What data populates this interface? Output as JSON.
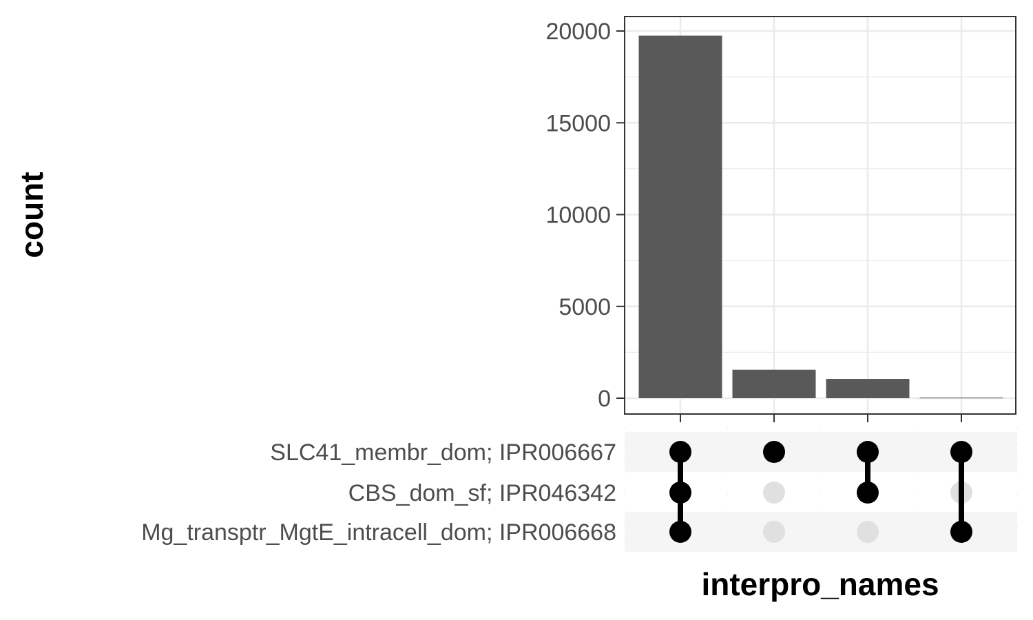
{
  "chart_data": {
    "type": "bar",
    "subtype": "upset",
    "xlabel": "interpro_names",
    "ylabel": "count",
    "ylim": [
      0,
      20800
    ],
    "yticks": [
      0,
      5000,
      10000,
      15000,
      20000
    ],
    "grid": true,
    "sets": [
      "SLC41_membr_dom; IPR006667",
      "CBS_dom_sf; IPR046342",
      "Mg_transptr_MgtE_intracell_dom; IPR006668"
    ],
    "intersections": [
      {
        "sets": [
          "SLC41_membr_dom; IPR006667",
          "CBS_dom_sf; IPR046342",
          "Mg_transptr_MgtE_intracell_dom; IPR006668"
        ],
        "value": 19750
      },
      {
        "sets": [
          "SLC41_membr_dom; IPR006667"
        ],
        "value": 1550
      },
      {
        "sets": [
          "SLC41_membr_dom; IPR006667",
          "CBS_dom_sf; IPR046342"
        ],
        "value": 1050
      },
      {
        "sets": [
          "SLC41_membr_dom; IPR006667",
          "Mg_transptr_MgtE_intracell_dom; IPR006668"
        ],
        "value": 30
      }
    ],
    "colors": {
      "bar": "#595959",
      "dot_active": "#000000",
      "dot_inactive": "#e0e0e0",
      "grid": "#ebebeb",
      "stripe": "#f5f5f5",
      "panel_border": "#333333"
    }
  }
}
